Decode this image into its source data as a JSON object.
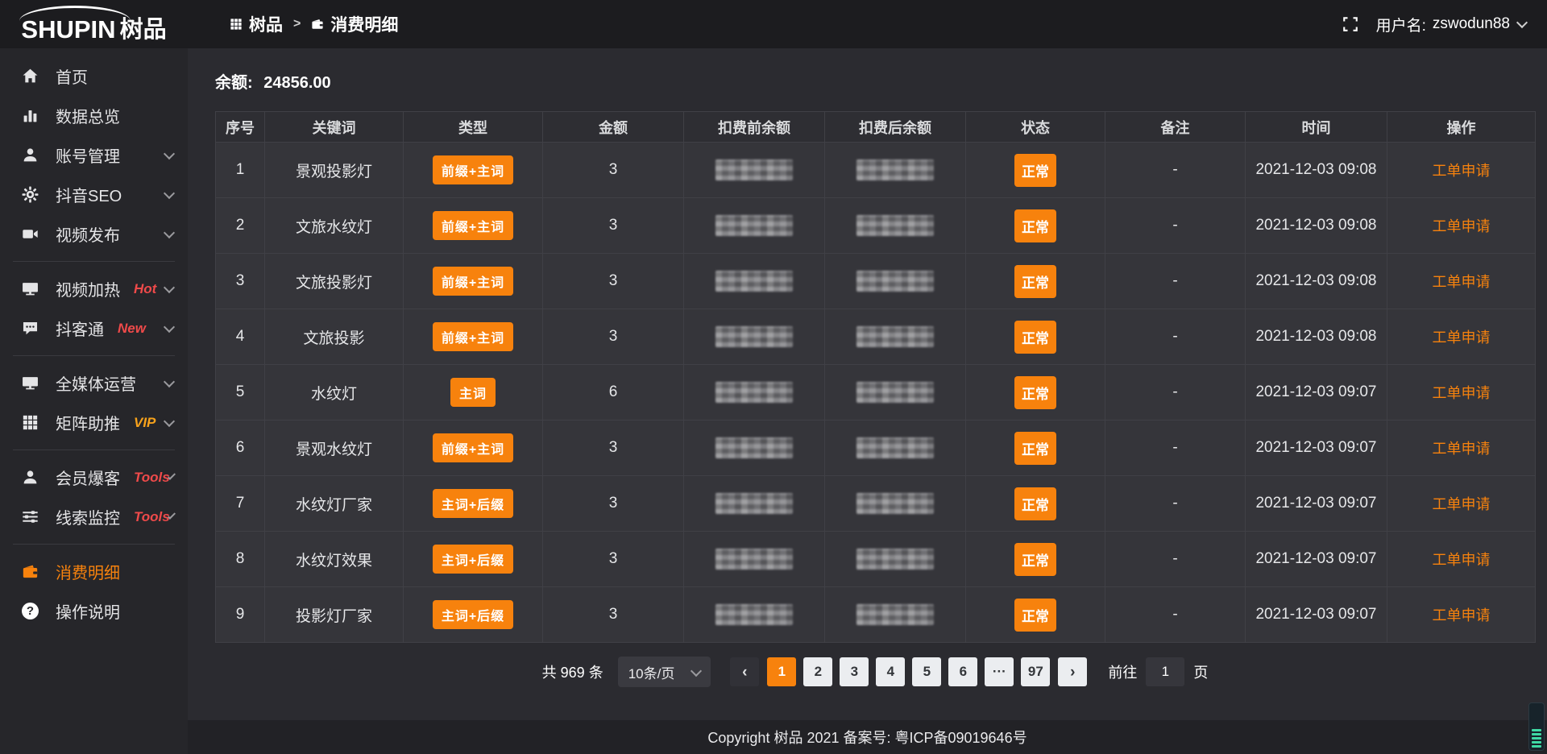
{
  "logo": {
    "brand_en": "SHUPIN",
    "brand_cn": "树品"
  },
  "header": {
    "breadcrumb_home": "树品",
    "separator": ">",
    "breadcrumb_current": "消费明细",
    "username_label": "用户名:",
    "username": "zswodun88"
  },
  "sidebar": {
    "items": [
      {
        "icon": "home-icon",
        "label": "首页"
      },
      {
        "icon": "bar-chart-icon",
        "label": "数据总览"
      },
      {
        "icon": "user-icon",
        "label": "账号管理",
        "chevron": true
      },
      {
        "icon": "gear-icon",
        "label": "抖音SEO",
        "chevron": true
      },
      {
        "icon": "video-camera-icon",
        "label": "视频发布",
        "chevron": true,
        "divider_after": true
      },
      {
        "icon": "monitor-icon",
        "label": "视频加热",
        "badge": "Hot",
        "badge_color": "#ef4a4a",
        "chevron": true
      },
      {
        "icon": "chat-icon",
        "label": "抖客通",
        "badge": "New",
        "badge_color": "#ef4a4a",
        "chevron": true,
        "divider_after": true
      },
      {
        "icon": "monitor-icon",
        "label": "全媒体运营",
        "chevron": true
      },
      {
        "icon": "grid-icon",
        "label": "矩阵助推",
        "badge": "VIP",
        "badge_color": "#f7a21b",
        "chevron": true,
        "divider_after": true
      },
      {
        "icon": "user-icon",
        "label": "会员爆客",
        "badge": "Tools",
        "badge_color": "#ef4a4a",
        "chevron": true
      },
      {
        "icon": "sliders-icon",
        "label": "线索监控",
        "badge": "Tools",
        "badge_color": "#ef4a4a",
        "chevron": true,
        "divider_after": true
      },
      {
        "icon": "wallet-icon",
        "label": "消费明细",
        "active": true
      },
      {
        "icon": "question-icon",
        "label": "操作说明"
      }
    ]
  },
  "balance": {
    "label": "余额:",
    "value": "24856.00"
  },
  "table": {
    "headers": [
      "序号",
      "关键词",
      "类型",
      "金额",
      "扣费前余额",
      "扣费后余额",
      "状态",
      "备注",
      "时间",
      "操作"
    ],
    "rows": [
      {
        "no": "1",
        "keyword": "景观投影灯",
        "type": "前缀+主词",
        "amount": "3",
        "status": "正常",
        "remark": "-",
        "time": "2021-12-03 09:08",
        "action": "工单申请"
      },
      {
        "no": "2",
        "keyword": "文旅水纹灯",
        "type": "前缀+主词",
        "amount": "3",
        "status": "正常",
        "remark": "-",
        "time": "2021-12-03 09:08",
        "action": "工单申请"
      },
      {
        "no": "3",
        "keyword": "文旅投影灯",
        "type": "前缀+主词",
        "amount": "3",
        "status": "正常",
        "remark": "-",
        "time": "2021-12-03 09:08",
        "action": "工单申请"
      },
      {
        "no": "4",
        "keyword": "文旅投影",
        "type": "前缀+主词",
        "amount": "3",
        "status": "正常",
        "remark": "-",
        "time": "2021-12-03 09:08",
        "action": "工单申请"
      },
      {
        "no": "5",
        "keyword": "水纹灯",
        "type": "主词",
        "amount": "6",
        "status": "正常",
        "remark": "-",
        "time": "2021-12-03 09:07",
        "action": "工单申请"
      },
      {
        "no": "6",
        "keyword": "景观水纹灯",
        "type": "前缀+主词",
        "amount": "3",
        "status": "正常",
        "remark": "-",
        "time": "2021-12-03 09:07",
        "action": "工单申请"
      },
      {
        "no": "7",
        "keyword": "水纹灯厂家",
        "type": "主词+后缀",
        "amount": "3",
        "status": "正常",
        "remark": "-",
        "time": "2021-12-03 09:07",
        "action": "工单申请"
      },
      {
        "no": "8",
        "keyword": "水纹灯效果",
        "type": "主词+后缀",
        "amount": "3",
        "status": "正常",
        "remark": "-",
        "time": "2021-12-03 09:07",
        "action": "工单申请"
      },
      {
        "no": "9",
        "keyword": "投影灯厂家",
        "type": "主词+后缀",
        "amount": "3",
        "status": "正常",
        "remark": "-",
        "time": "2021-12-03 09:07",
        "action": "工单申请"
      }
    ]
  },
  "pagination": {
    "total": "共 969 条",
    "page_size": "10条/页",
    "pages": [
      "1",
      "2",
      "3",
      "4",
      "5",
      "6",
      "···",
      "97"
    ],
    "active_page": "1",
    "goto_label": "前往",
    "goto_value": "1",
    "goto_unit": "页"
  },
  "footer": {
    "copyright": "Copyright 树品 2021 备案号:  粤ICP备09019646号"
  },
  "colors": {
    "accent": "#f7820d",
    "badge_hot": "#ef4a4a",
    "badge_vip": "#f7a21b"
  }
}
